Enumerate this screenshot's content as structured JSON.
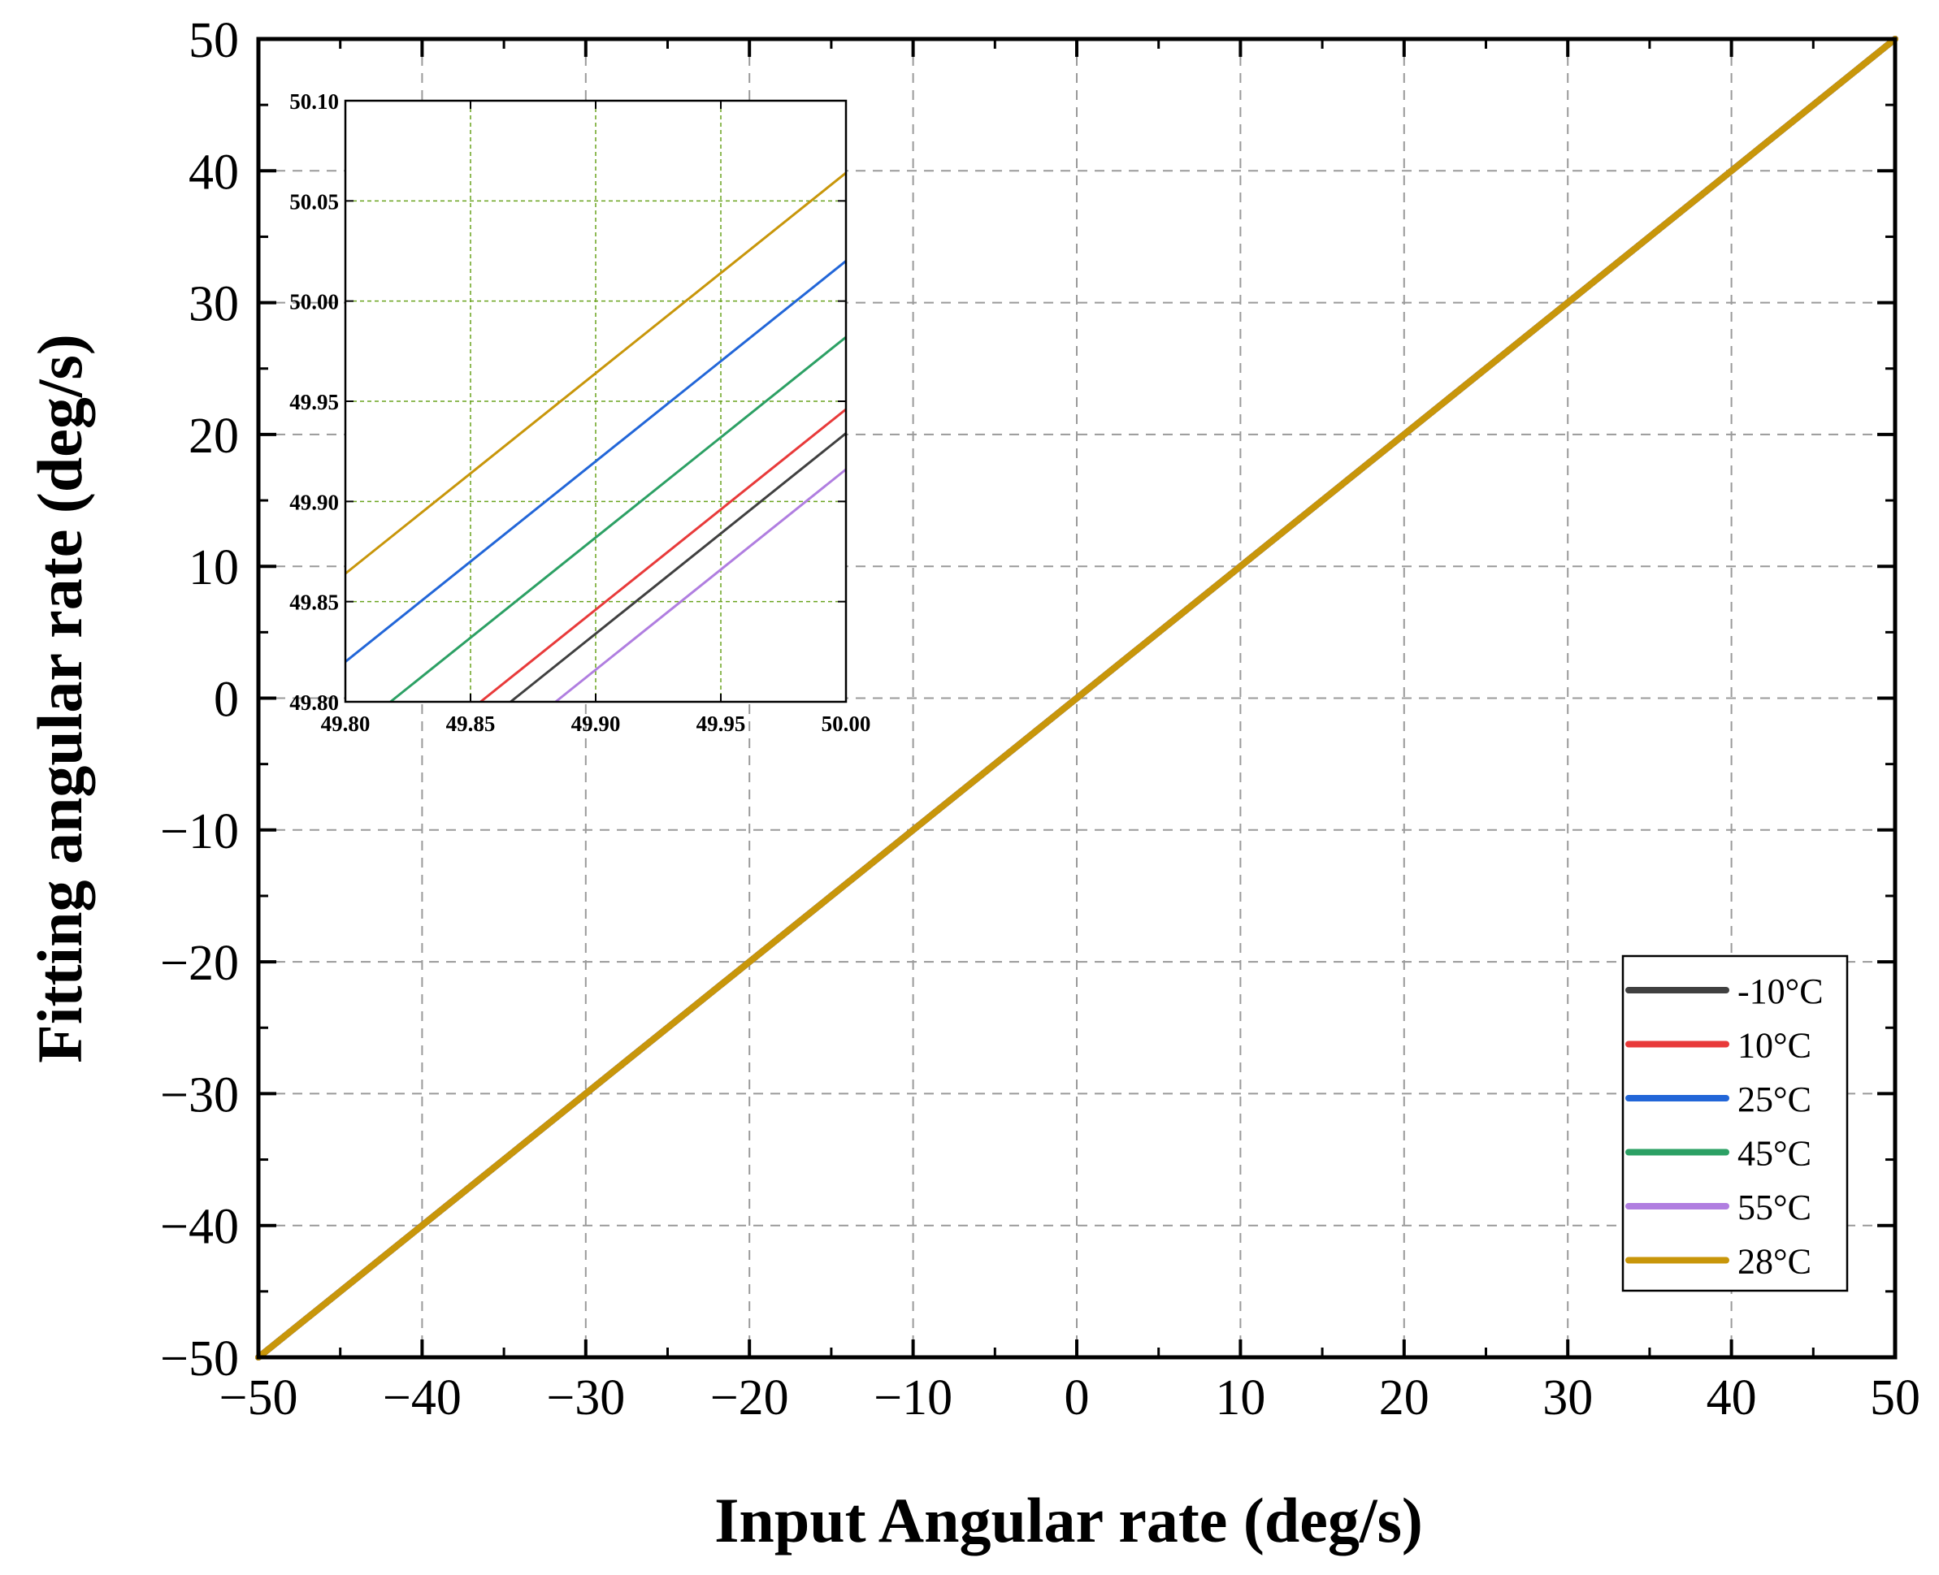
{
  "chart_data": [
    {
      "type": "line",
      "role": "main",
      "title": "",
      "xlabel": "Input Angular rate (deg/s)",
      "ylabel": "Fitting angular rate (deg/s)",
      "xlim": [
        -50,
        50
      ],
      "ylim": [
        -50,
        50
      ],
      "xticks": [
        -50,
        -40,
        -30,
        -20,
        -10,
        0,
        10,
        20,
        30,
        40,
        50
      ],
      "yticks": [
        -50,
        -40,
        -30,
        -20,
        -10,
        0,
        10,
        20,
        30,
        40,
        50
      ],
      "xtick_labels": [
        "−50",
        "−40",
        "−30",
        "−20",
        "−10",
        "0",
        "10",
        "20",
        "30",
        "40",
        "50"
      ],
      "ytick_labels": [
        "−50",
        "−40",
        "−30",
        "−20",
        "−10",
        "0",
        "10",
        "20",
        "30",
        "40",
        "50"
      ],
      "grid": true,
      "legend_position": "bottom-right",
      "series": [
        {
          "name": "-10°C",
          "color": "#404040",
          "x": [
            -50,
            50
          ],
          "y": [
            -50,
            50
          ]
        },
        {
          "name": "10°C",
          "color": "#e83a3a",
          "x": [
            -50,
            50
          ],
          "y": [
            -50,
            50
          ]
        },
        {
          "name": "25°C",
          "color": "#2266d8",
          "x": [
            -50,
            50
          ],
          "y": [
            -50,
            50
          ]
        },
        {
          "name": "45°C",
          "color": "#2ca064",
          "x": [
            -50,
            50
          ],
          "y": [
            -50,
            50
          ]
        },
        {
          "name": "55°C",
          "color": "#b07ee0",
          "x": [
            -50,
            50
          ],
          "y": [
            -50,
            50
          ]
        },
        {
          "name": "28°C",
          "color": "#c8960a",
          "x": [
            -50,
            50
          ],
          "y": [
            -50,
            50
          ]
        }
      ]
    },
    {
      "type": "line",
      "role": "inset",
      "title": "",
      "xlabel": "",
      "ylabel": "",
      "xlim": [
        49.8,
        50.0
      ],
      "ylim": [
        49.8,
        50.1
      ],
      "xticks": [
        49.8,
        49.85,
        49.9,
        49.95,
        50.0
      ],
      "yticks": [
        49.8,
        49.85,
        49.9,
        49.95,
        50.0,
        50.05,
        50.1
      ],
      "xtick_labels": [
        "49.80",
        "49.85",
        "49.90",
        "49.95",
        "50.00"
      ],
      "ytick_labels": [
        "49.80",
        "49.85",
        "49.90",
        "49.95",
        "50.00",
        "50.05",
        "50.10"
      ],
      "grid": true,
      "series": [
        {
          "name": "-10°C",
          "color": "#404040",
          "x": [
            49.866,
            50.0
          ],
          "y": [
            49.8,
            49.934
          ]
        },
        {
          "name": "10°C",
          "color": "#e83a3a",
          "x": [
            49.854,
            50.0
          ],
          "y": [
            49.8,
            49.946
          ]
        },
        {
          "name": "25°C",
          "color": "#2266d8",
          "x": [
            49.8,
            50.0
          ],
          "y": [
            49.82,
            50.02
          ]
        },
        {
          "name": "45°C",
          "color": "#2ca064",
          "x": [
            49.818,
            50.0
          ],
          "y": [
            49.8,
            49.982
          ]
        },
        {
          "name": "55°C",
          "color": "#b07ee0",
          "x": [
            49.884,
            50.0
          ],
          "y": [
            49.8,
            49.916
          ]
        },
        {
          "name": "28°C",
          "color": "#c8960a",
          "x": [
            49.8,
            50.0
          ],
          "y": [
            49.864,
            50.064
          ]
        }
      ]
    }
  ]
}
